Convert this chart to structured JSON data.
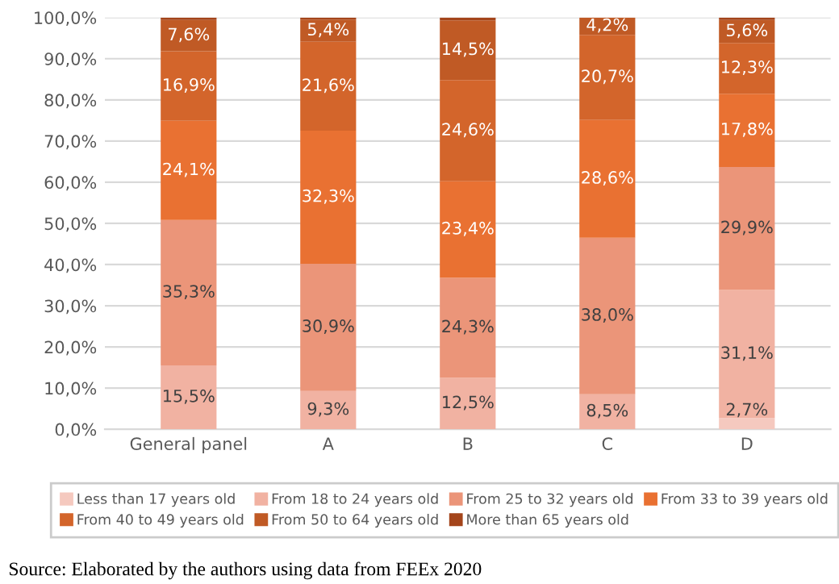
{
  "chart_data": {
    "type": "bar",
    "stacked": true,
    "categories": [
      "General panel",
      "A",
      "B",
      "C",
      "D"
    ],
    "ylim": [
      0,
      100
    ],
    "yticks": [
      {
        "value": 0,
        "label": "0,0%"
      },
      {
        "value": 10,
        "label": "10,0%"
      },
      {
        "value": 20,
        "label": "20,0%"
      },
      {
        "value": 30,
        "label": "30,0%"
      },
      {
        "value": 40,
        "label": "40,0%"
      },
      {
        "value": 50,
        "label": "50,0%"
      },
      {
        "value": 60,
        "label": "60,0%"
      },
      {
        "value": 70,
        "label": "70,0%"
      },
      {
        "value": 80,
        "label": "80,0%"
      },
      {
        "value": 90,
        "label": "90,0%"
      },
      {
        "value": 100,
        "label": "100,0%"
      }
    ],
    "grid": "y",
    "legend": "bottom",
    "series": [
      {
        "name": "Less than 17 years old",
        "color": "#f5c9bf",
        "values": [
          0,
          0,
          0,
          0,
          2.7
        ],
        "value_labels": [
          null,
          null,
          null,
          null,
          "2,7%"
        ]
      },
      {
        "name": "From 18 to 24 years old",
        "color": "#f1b2a2",
        "values": [
          15.5,
          9.3,
          12.5,
          8.5,
          31.1
        ],
        "value_labels": [
          "15,5%",
          "9,3%",
          "12,5%",
          "8,5%",
          "31,1%"
        ]
      },
      {
        "name": "From 25 to 32 years old",
        "color": "#eb9579",
        "values": [
          35.3,
          30.9,
          24.3,
          38.0,
          29.9
        ],
        "value_labels": [
          "35,3%",
          "30,9%",
          "24,3%",
          "38,0%",
          "29,9%"
        ]
      },
      {
        "name": "From 33 to 39 years old",
        "color": "#e97132",
        "values": [
          24.1,
          32.3,
          23.4,
          28.6,
          17.8
        ],
        "value_labels": [
          "24,1%",
          "32,3%",
          "23,4%",
          "28,6%",
          "17,8%"
        ]
      },
      {
        "name": "From 40 to 49 years old",
        "color": "#d3652b",
        "values": [
          16.9,
          21.6,
          24.6,
          20.7,
          12.3
        ],
        "value_labels": [
          "16,9%",
          "21,6%",
          "24,6%",
          "20,7%",
          "12,3%"
        ]
      },
      {
        "name": "From 50 to 64 years old",
        "color": "#c05a25",
        "values": [
          7.6,
          5.4,
          14.5,
          4.2,
          5.6
        ],
        "value_labels": [
          "7,6%",
          "5,4%",
          "14,5%",
          "4,2%",
          "5,6%"
        ]
      },
      {
        "name": "More than 65 years old",
        "color": "#a4451b",
        "values": [
          0.6,
          0.5,
          0.7,
          0,
          0.6
        ],
        "value_labels": [
          null,
          null,
          null,
          null,
          null
        ]
      }
    ],
    "annotations": [
      "Source: Elaborated by the authors using data from FEEx 2020"
    ]
  }
}
